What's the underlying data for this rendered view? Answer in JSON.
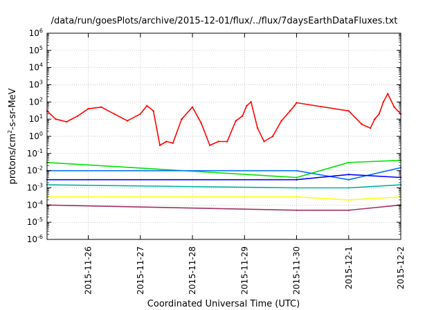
{
  "chart_data": {
    "type": "line",
    "title": "/data/run/goesPlots/archive/2015-12-01/flux/../flux/7daysEarthDataFluxes.txt",
    "xlabel": "Coordinated Universal Time (UTC)",
    "ylabel": "protons/cm2-s-sr-MeV",
    "ylabel_parts": {
      "pre": "protons/cm",
      "sup": "2",
      "post": "-s-sr-MeV"
    },
    "yscale": "log",
    "ylim": [
      1e-06,
      1000000.0
    ],
    "xlim": [
      "2015-11-25T05:00",
      "2015-12-02T00:00"
    ],
    "grid": true,
    "legend": "none",
    "y_ticks": [
      {
        "value": 1e-06,
        "base": "10",
        "exp": "-6"
      },
      {
        "value": 1e-05,
        "base": "10",
        "exp": "-5"
      },
      {
        "value": 0.0001,
        "base": "10",
        "exp": "-4"
      },
      {
        "value": 0.001,
        "base": "10",
        "exp": "-3"
      },
      {
        "value": 0.01,
        "base": "10",
        "exp": "-2"
      },
      {
        "value": 0.1,
        "base": "10",
        "exp": "-1"
      },
      {
        "value": 1,
        "base": "10",
        "exp": "0"
      },
      {
        "value": 10,
        "base": "10",
        "exp": "1"
      },
      {
        "value": 100,
        "base": "10",
        "exp": "2"
      },
      {
        "value": 1000,
        "base": "10",
        "exp": "3"
      },
      {
        "value": 10000,
        "base": "10",
        "exp": "4"
      },
      {
        "value": 100000,
        "base": "10",
        "exp": "5"
      },
      {
        "value": 1000000,
        "base": "10",
        "exp": "6"
      }
    ],
    "x_ticks": [
      "2015-11-26",
      "2015-11-27",
      "2015-11-28",
      "2015-11-29",
      "2015-11-30",
      "2015-12-1",
      "2015-12-2"
    ],
    "series": [
      {
        "color": "#ff0000",
        "x": [
          "2015-11-25T05:00",
          "2015-11-25T09:00",
          "2015-11-25T14:00",
          "2015-11-25T19:00",
          "2015-11-26T00:00",
          "2015-11-26T06:00",
          "2015-11-26T12:00",
          "2015-11-26T18:00",
          "2015-11-27T00:00",
          "2015-11-27T03:00",
          "2015-11-27T06:00",
          "2015-11-27T09:00",
          "2015-11-27T12:00",
          "2015-11-27T15:00",
          "2015-11-27T19:00",
          "2015-11-28T00:00",
          "2015-11-28T04:00",
          "2015-11-28T08:00",
          "2015-11-28T12:00",
          "2015-11-28T16:00",
          "2015-11-28T20:00",
          "2015-11-28T23:00",
          "2015-11-29T01:00",
          "2015-11-29T03:00",
          "2015-11-29T06:00",
          "2015-11-29T09:00",
          "2015-11-29T13:00",
          "2015-11-29T17:00",
          "2015-11-29T21:00",
          "2015-11-29T23:00",
          "2015-11-30T00:00",
          "2015-12-01T00:00",
          "2015-12-01T06:00",
          "2015-12-01T10:00",
          "2015-12-01T12:00",
          "2015-12-01T14:00",
          "2015-12-01T16:00",
          "2015-12-01T18:00",
          "2015-12-01T21:00",
          "2015-12-02T00:00"
        ],
        "y": [
          30,
          10,
          7,
          15,
          40,
          50,
          20,
          8,
          20,
          60,
          30,
          0.3,
          0.5,
          0.4,
          10,
          50,
          6,
          0.3,
          0.5,
          0.5,
          8,
          15,
          60,
          100,
          3,
          0.5,
          1,
          8,
          30,
          60,
          90,
          30,
          5,
          3,
          10,
          20,
          100,
          300,
          50,
          20
        ]
      },
      {
        "color": "#00e000",
        "x": [
          "2015-11-25T05:00",
          "2015-11-30T00:00",
          "2015-12-01T00:00",
          "2015-12-02T00:00"
        ],
        "y": [
          0.03,
          0.004,
          0.03,
          0.04
        ]
      },
      {
        "color": "#0070ff",
        "x": [
          "2015-11-25T05:00",
          "2015-11-30T00:00",
          "2015-12-01T00:00",
          "2015-12-02T00:00"
        ],
        "y": [
          0.01,
          0.01,
          0.003,
          0.015
        ]
      },
      {
        "color": "#0000ff",
        "x": [
          "2015-11-25T05:00",
          "2015-11-30T00:00",
          "2015-12-01T00:00",
          "2015-12-02T00:00"
        ],
        "y": [
          0.003,
          0.003,
          0.006,
          0.004
        ]
      },
      {
        "color": "#00b0a0",
        "x": [
          "2015-11-25T05:00",
          "2015-11-30T00:00",
          "2015-12-01T00:00",
          "2015-12-02T00:00"
        ],
        "y": [
          0.0015,
          0.001,
          0.001,
          0.0015
        ]
      },
      {
        "color": "#ffff00",
        "x": [
          "2015-11-25T05:00",
          "2015-11-30T00:00",
          "2015-12-01T00:00",
          "2015-12-02T00:00"
        ],
        "y": [
          0.0003,
          0.0003,
          0.0002,
          0.0003
        ]
      },
      {
        "color": "#a03060",
        "x": [
          "2015-11-25T05:00",
          "2015-11-30T00:00",
          "2015-12-01T00:00",
          "2015-12-02T00:00"
        ],
        "y": [
          0.0001,
          5e-05,
          5e-05,
          0.0001
        ]
      }
    ]
  }
}
